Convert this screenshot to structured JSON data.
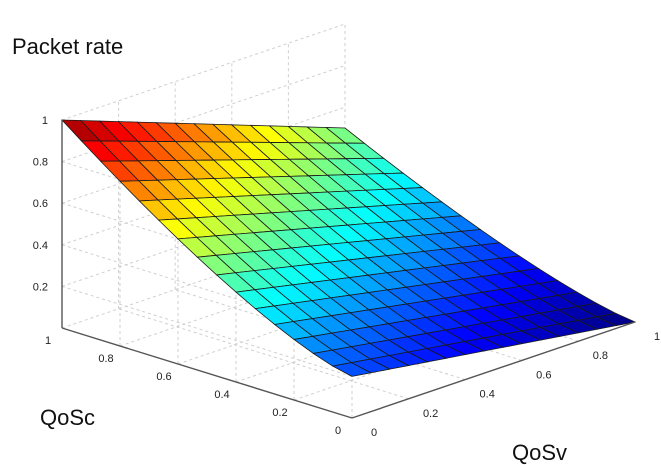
{
  "chart_data": {
    "type": "surface",
    "zlabel": "Packet rate",
    "xlabel": "QoSv",
    "ylabel": "QoSc",
    "zlim": [
      0,
      1
    ],
    "xlim": [
      0,
      1
    ],
    "ylim": [
      0,
      1
    ],
    "grid": true,
    "colormap": "jet",
    "z_ticks": [
      "0.2",
      "0.4",
      "0.6",
      "0.8",
      "1"
    ],
    "x_ticks": [
      "0",
      "0.2",
      "0.4",
      "0.6",
      "0.8",
      "1"
    ],
    "y_ticks": [
      "0",
      "0.2",
      "0.4",
      "0.6",
      "0.8",
      "1"
    ],
    "grid_size": 15,
    "corner_values": {
      "qosc_1_qosv_0": 1.0,
      "qosc_1_qosv_1": 0.5,
      "qosc_0_qosv_0": 0.2,
      "qosc_0_qosv_1": 0.0
    },
    "surface_samples": [
      {
        "qosc": 1,
        "qosv": 0,
        "rate": 1.0
      },
      {
        "qosc": 1,
        "qosv": 1,
        "rate": 0.5
      },
      {
        "qosc": 0.5,
        "qosv": 0,
        "rate": 0.55
      },
      {
        "qosc": 0.5,
        "qosv": 1,
        "rate": 0.12
      },
      {
        "qosc": 0,
        "qosv": 0,
        "rate": 0.2
      },
      {
        "qosc": 0,
        "qosv": 1,
        "rate": 0.0
      }
    ]
  }
}
